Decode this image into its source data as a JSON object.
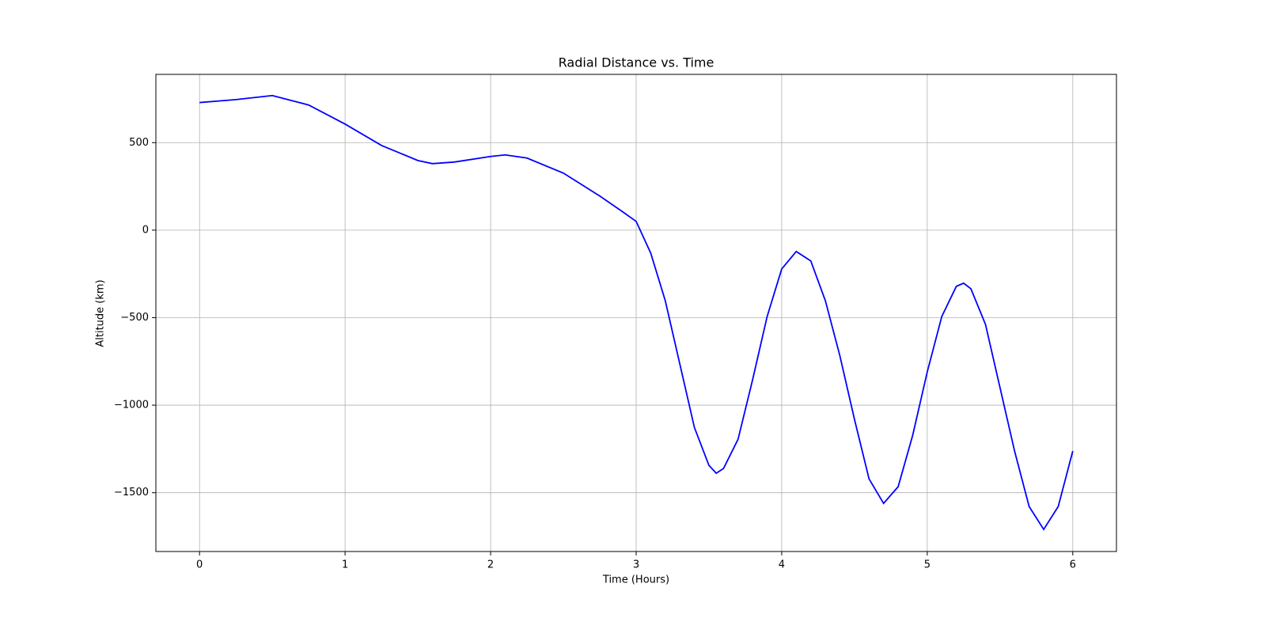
{
  "chart_data": {
    "type": "line",
    "title": "Radial Distance vs. Time",
    "xlabel": "Time (Hours)",
    "ylabel": "Altitude (km)",
    "x": [
      0,
      0.25,
      0.5,
      0.75,
      1.0,
      1.25,
      1.5,
      1.6,
      1.75,
      2.0,
      2.1,
      2.25,
      2.5,
      2.75,
      2.9,
      3.0,
      3.1,
      3.2,
      3.3,
      3.4,
      3.5,
      3.55,
      3.6,
      3.7,
      3.8,
      3.9,
      4.0,
      4.1,
      4.2,
      4.3,
      4.4,
      4.5,
      4.6,
      4.7,
      4.8,
      4.9,
      5.0,
      5.1,
      5.2,
      5.25,
      5.3,
      5.4,
      5.5,
      5.6,
      5.7,
      5.8,
      5.9,
      6.0
    ],
    "series": [
      {
        "name": "Altitude",
        "color": "#0000ff",
        "values": [
          729,
          746,
          769,
          715,
          606,
          484,
          398,
          380,
          389,
          421,
          430,
          412,
          326,
          195,
          109,
          50,
          -131,
          -403,
          -765,
          -1127,
          -1344,
          -1389,
          -1362,
          -1195,
          -855,
          -493,
          -222,
          -122,
          -176,
          -403,
          -719,
          -1081,
          -1421,
          -1561,
          -1466,
          -1172,
          -810,
          -493,
          -321,
          -303,
          -335,
          -538,
          -900,
          -1262,
          -1579,
          -1710,
          -1579,
          -1262
        ]
      }
    ],
    "xlim": [
      -0.3,
      6.3
    ],
    "ylim": [
      -1836,
      890
    ],
    "xticks": [
      0,
      1,
      2,
      3,
      4,
      5,
      6
    ],
    "yticks": [
      {
        "value": -1500,
        "label": "−1500"
      },
      {
        "value": -1000,
        "label": "−1000"
      },
      {
        "value": -500,
        "label": "−500"
      },
      0,
      500
    ],
    "grid": true
  }
}
